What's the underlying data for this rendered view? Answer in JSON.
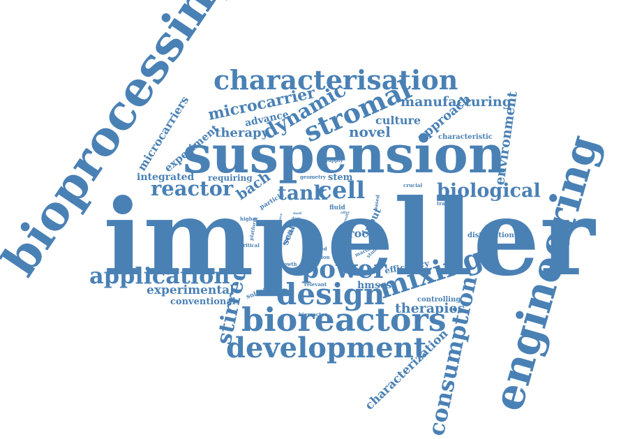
{
  "word_color": "#4a81b5",
  "words": {
    "impeller": "impeller",
    "suspension": "suspension",
    "bioprocessing": "bioprocessing",
    "engineering": "engineering",
    "characterisation": "characterisation",
    "bioreactors": "bioreactors",
    "development": "development",
    "design": "design",
    "mixing": "mixing",
    "application": "application",
    "power": "power",
    "stromal": "stromal",
    "dynamic": "dynamic",
    "cell": "cell",
    "tank": "tank",
    "reactor": "reactor",
    "biological": "biological",
    "consumption": "consumption",
    "stirred": "stirred",
    "microcarrier": "microcarrier",
    "microcarriers": "microcarriers",
    "therapy": "therapy",
    "manufacturing": "manufacturing",
    "novel": "novel",
    "culture": "culture",
    "approach": "approach",
    "environment": "environment",
    "advance": "advance",
    "experiment": "experiment",
    "integrated": "integrated",
    "requiring": "requiring",
    "bach": "bach",
    "experimental": "experimental",
    "conventional": "conventional",
    "therapies": "therapies",
    "characterization": "characterization",
    "stem": "stem",
    "hmscs": "hmscs",
    "efficiency": "efficiency",
    "controlling": "controlling",
    "proc": "proc",
    "input": "input",
    "human": "human",
    "scale": "scale",
    "particle": "particle",
    "platform": "platform",
    "characteristic": "characteristic",
    "distribution": "distribution",
    "solution": "solution",
    "relevant": "relevant",
    "bioreactor": "bioreactor",
    "growth": "growth",
    "addition": "addition",
    "speed": "speed",
    "marine": "marine",
    "studies": "studies",
    "geometry": "geometry",
    "supply": "supply",
    "fluid": "fluid",
    "crucial": "crucial",
    "transfer": "transfer",
    "higher": "higher",
    "critical": "critical",
    "number": "number",
    "based": "based",
    "dose": "dose",
    "mod": "mod",
    "force": "force",
    "offer": "offer",
    "result": "result"
  }
}
